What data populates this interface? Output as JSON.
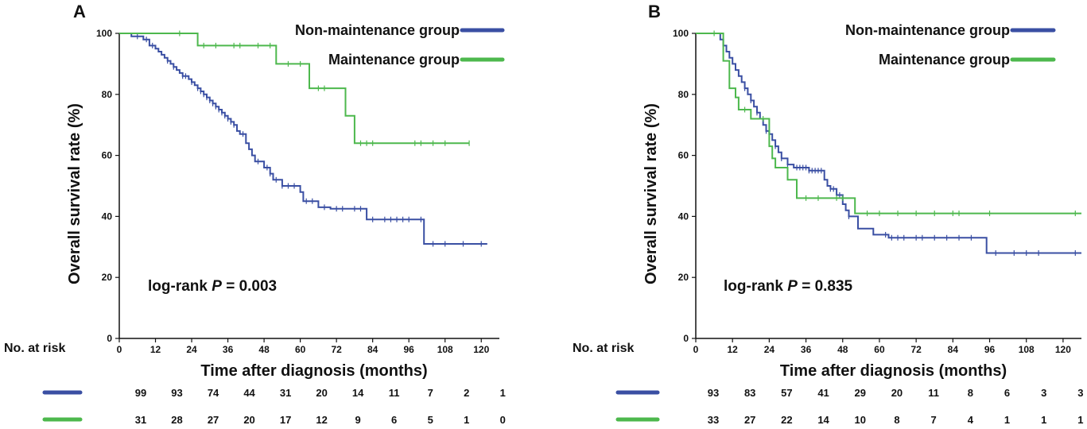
{
  "chart_data": [
    {
      "panel": "A",
      "type": "line",
      "chart_subtype": "kaplan-meier",
      "xlabel": "Time after diagnosis (months)",
      "ylabel": "Overall survival rate (%)",
      "xlim": [
        0,
        126
      ],
      "ylim": [
        0,
        100
      ],
      "x_ticks": [
        0,
        12,
        24,
        36,
        48,
        60,
        72,
        84,
        96,
        108,
        120
      ],
      "y_ticks": [
        0,
        20,
        40,
        60,
        80,
        100
      ],
      "annotation": {
        "prefix": "log-rank ",
        "italic": "P",
        "suffix": " = 0.003"
      },
      "legend_position": "top-right",
      "risk_table_title": "No. at risk",
      "series": [
        {
          "name": "Non-maintenance group",
          "color": "#3a4fa3",
          "steps": [
            [
              0,
              100
            ],
            [
              4,
              100
            ],
            [
              4,
              99
            ],
            [
              8,
              99
            ],
            [
              8,
              98
            ],
            [
              10,
              98
            ],
            [
              10,
              96
            ],
            [
              12,
              96
            ],
            [
              12,
              95
            ],
            [
              13,
              95
            ],
            [
              13,
              94
            ],
            [
              14,
              94
            ],
            [
              14,
              93
            ],
            [
              15,
              93
            ],
            [
              15,
              92
            ],
            [
              16,
              92
            ],
            [
              16,
              91
            ],
            [
              17,
              91
            ],
            [
              17,
              90
            ],
            [
              18,
              90
            ],
            [
              18,
              89
            ],
            [
              19,
              89
            ],
            [
              19,
              88
            ],
            [
              20,
              88
            ],
            [
              20,
              87
            ],
            [
              21,
              87
            ],
            [
              21,
              86
            ],
            [
              23,
              86
            ],
            [
              23,
              85
            ],
            [
              24,
              85
            ],
            [
              24,
              84
            ],
            [
              25,
              84
            ],
            [
              25,
              83
            ],
            [
              26,
              83
            ],
            [
              26,
              82
            ],
            [
              27,
              82
            ],
            [
              27,
              81
            ],
            [
              28,
              81
            ],
            [
              28,
              80
            ],
            [
              29,
              80
            ],
            [
              29,
              79
            ],
            [
              30,
              79
            ],
            [
              30,
              78
            ],
            [
              31,
              78
            ],
            [
              31,
              77
            ],
            [
              32,
              77
            ],
            [
              32,
              76
            ],
            [
              33,
              76
            ],
            [
              33,
              75
            ],
            [
              34,
              75
            ],
            [
              34,
              74
            ],
            [
              35,
              74
            ],
            [
              35,
              73
            ],
            [
              36,
              73
            ],
            [
              36,
              72
            ],
            [
              37,
              72
            ],
            [
              37,
              71
            ],
            [
              38,
              71
            ],
            [
              38,
              70
            ],
            [
              39,
              70
            ],
            [
              39,
              68
            ],
            [
              40,
              68
            ],
            [
              40,
              67
            ],
            [
              42,
              67
            ],
            [
              42,
              64
            ],
            [
              43,
              64
            ],
            [
              43,
              62
            ],
            [
              44,
              62
            ],
            [
              44,
              60
            ],
            [
              45,
              60
            ],
            [
              45,
              58
            ],
            [
              48,
              58
            ],
            [
              48,
              56
            ],
            [
              50,
              56
            ],
            [
              50,
              54
            ],
            [
              51,
              54
            ],
            [
              51,
              52
            ],
            [
              54,
              52
            ],
            [
              54,
              50
            ],
            [
              60,
              50
            ],
            [
              60,
              48
            ],
            [
              61,
              48
            ],
            [
              61,
              45
            ],
            [
              66,
              45
            ],
            [
              66,
              43
            ],
            [
              70,
              43
            ],
            [
              70,
              42.5
            ],
            [
              82,
              42.5
            ],
            [
              82,
              39
            ],
            [
              101,
              39
            ],
            [
              101,
              31
            ],
            [
              122,
              31
            ]
          ],
          "censor_x": [
            6,
            9,
            11,
            16,
            18,
            21,
            22,
            24,
            26,
            27,
            28,
            29,
            30,
            31,
            32,
            33,
            34,
            35,
            36,
            37,
            38,
            41,
            46,
            49,
            50,
            52,
            54,
            56,
            58,
            62,
            64,
            68,
            72,
            74,
            78,
            80,
            84,
            88,
            90,
            92,
            94,
            96,
            100,
            104,
            108,
            114,
            120
          ],
          "at_risk": [
            99,
            93,
            74,
            44,
            31,
            20,
            14,
            11,
            7,
            2,
            1
          ]
        },
        {
          "name": "Maintenance group",
          "color": "#4db84d",
          "steps": [
            [
              0,
              100
            ],
            [
              26,
              100
            ],
            [
              26,
              96
            ],
            [
              52,
              96
            ],
            [
              52,
              90
            ],
            [
              63,
              90
            ],
            [
              63,
              82
            ],
            [
              75,
              82
            ],
            [
              75,
              73
            ],
            [
              78,
              73
            ],
            [
              78,
              64
            ],
            [
              116,
              64
            ]
          ],
          "censor_x": [
            20,
            28,
            32,
            38,
            40,
            46,
            50,
            56,
            60,
            66,
            68,
            80,
            82,
            84,
            98,
            100,
            104,
            108,
            116
          ],
          "at_risk": [
            31,
            28,
            27,
            20,
            17,
            12,
            9,
            6,
            5,
            1,
            0
          ]
        }
      ]
    },
    {
      "panel": "B",
      "type": "line",
      "chart_subtype": "kaplan-meier",
      "xlabel": "Time after diagnosis (months)",
      "ylabel": "Overall survival rate (%)",
      "xlim": [
        0,
        126
      ],
      "ylim": [
        0,
        100
      ],
      "x_ticks": [
        0,
        12,
        24,
        36,
        48,
        60,
        72,
        84,
        96,
        108,
        120
      ],
      "y_ticks": [
        0,
        20,
        40,
        60,
        80,
        100
      ],
      "annotation": {
        "prefix": "log-rank ",
        "italic": "P",
        "suffix": " = 0.835"
      },
      "legend_position": "top-right",
      "risk_table_title": "No. at risk",
      "series": [
        {
          "name": "Non-maintenance group",
          "color": "#3a4fa3",
          "steps": [
            [
              0,
              100
            ],
            [
              8,
              100
            ],
            [
              8,
              98
            ],
            [
              9,
              98
            ],
            [
              9,
              96
            ],
            [
              10,
              96
            ],
            [
              10,
              94
            ],
            [
              11,
              94
            ],
            [
              11,
              92
            ],
            [
              12,
              92
            ],
            [
              12,
              90
            ],
            [
              13,
              90
            ],
            [
              13,
              88
            ],
            [
              14,
              88
            ],
            [
              14,
              86
            ],
            [
              15,
              86
            ],
            [
              15,
              84
            ],
            [
              16,
              84
            ],
            [
              16,
              82
            ],
            [
              17,
              82
            ],
            [
              17,
              80
            ],
            [
              18,
              80
            ],
            [
              18,
              78
            ],
            [
              19,
              78
            ],
            [
              19,
              76
            ],
            [
              20,
              76
            ],
            [
              20,
              74
            ],
            [
              21,
              74
            ],
            [
              21,
              72
            ],
            [
              22,
              72
            ],
            [
              22,
              70
            ],
            [
              23,
              70
            ],
            [
              23,
              68
            ],
            [
              24,
              68
            ],
            [
              24,
              67
            ],
            [
              25,
              67
            ],
            [
              25,
              65
            ],
            [
              26,
              65
            ],
            [
              26,
              63
            ],
            [
              27,
              63
            ],
            [
              27,
              61
            ],
            [
              28,
              61
            ],
            [
              28,
              59
            ],
            [
              30,
              59
            ],
            [
              30,
              57
            ],
            [
              32,
              57
            ],
            [
              32,
              56
            ],
            [
              37,
              56
            ],
            [
              37,
              55
            ],
            [
              42,
              55
            ],
            [
              42,
              52
            ],
            [
              43,
              52
            ],
            [
              43,
              50
            ],
            [
              44,
              50
            ],
            [
              44,
              49
            ],
            [
              46,
              49
            ],
            [
              46,
              47
            ],
            [
              48,
              47
            ],
            [
              48,
              44
            ],
            [
              49,
              44
            ],
            [
              49,
              42
            ],
            [
              50,
              42
            ],
            [
              50,
              40
            ],
            [
              53,
              40
            ],
            [
              53,
              36
            ],
            [
              58,
              36
            ],
            [
              58,
              34
            ],
            [
              63,
              34
            ],
            [
              63,
              33
            ],
            [
              95,
              33
            ],
            [
              95,
              28
            ],
            [
              126,
              28
            ]
          ],
          "censor_x": [
            16,
            18,
            20,
            23,
            26,
            28,
            30,
            33,
            34,
            35,
            36,
            37,
            38,
            39,
            40,
            41,
            44,
            45,
            47,
            50,
            62,
            64,
            66,
            68,
            72,
            74,
            78,
            82,
            86,
            90,
            98,
            104,
            108,
            112,
            124
          ],
          "at_risk": [
            93,
            83,
            57,
            41,
            29,
            20,
            11,
            8,
            6,
            3,
            3
          ]
        },
        {
          "name": "Maintenance group",
          "color": "#4db84d",
          "steps": [
            [
              0,
              100
            ],
            [
              9,
              100
            ],
            [
              9,
              91
            ],
            [
              11,
              91
            ],
            [
              11,
              82
            ],
            [
              13,
              82
            ],
            [
              13,
              79
            ],
            [
              14,
              79
            ],
            [
              14,
              75
            ],
            [
              18,
              75
            ],
            [
              18,
              72
            ],
            [
              24,
              72
            ],
            [
              24,
              63
            ],
            [
              25,
              63
            ],
            [
              25,
              59
            ],
            [
              26,
              59
            ],
            [
              26,
              56
            ],
            [
              30,
              56
            ],
            [
              30,
              52
            ],
            [
              33,
              52
            ],
            [
              33,
              46
            ],
            [
              52,
              46
            ],
            [
              52,
              41
            ],
            [
              126,
              41
            ]
          ],
          "censor_x": [
            6,
            16,
            22,
            36,
            40,
            46,
            48,
            56,
            60,
            66,
            72,
            78,
            84,
            86,
            96,
            124
          ],
          "at_risk": [
            33,
            27,
            22,
            14,
            10,
            8,
            7,
            4,
            1,
            1,
            1
          ]
        }
      ]
    }
  ]
}
